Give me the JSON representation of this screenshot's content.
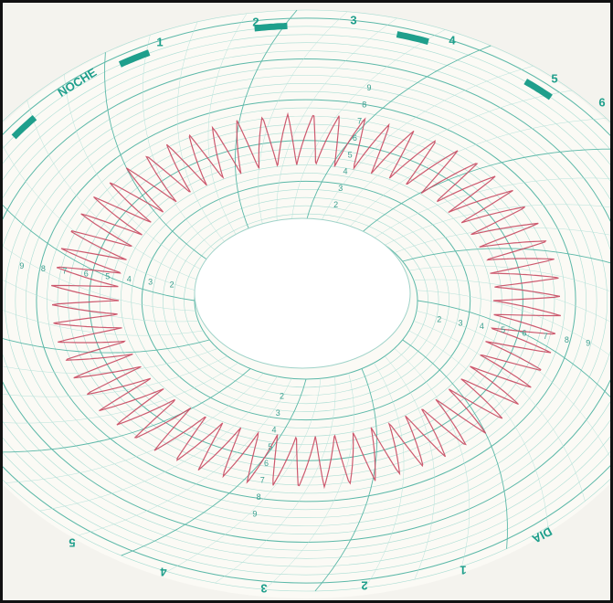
{
  "header": {
    "night": "NOCHE",
    "day": "DIA"
  },
  "top_scale": [
    "1",
    "2",
    "3",
    "4",
    "5",
    "6"
  ],
  "bottom_scale": [
    "5",
    "4",
    "3",
    "2",
    "1"
  ],
  "ring_labels": [
    "9",
    "8",
    "7",
    "6",
    "5",
    "4",
    "3",
    "2"
  ]
}
